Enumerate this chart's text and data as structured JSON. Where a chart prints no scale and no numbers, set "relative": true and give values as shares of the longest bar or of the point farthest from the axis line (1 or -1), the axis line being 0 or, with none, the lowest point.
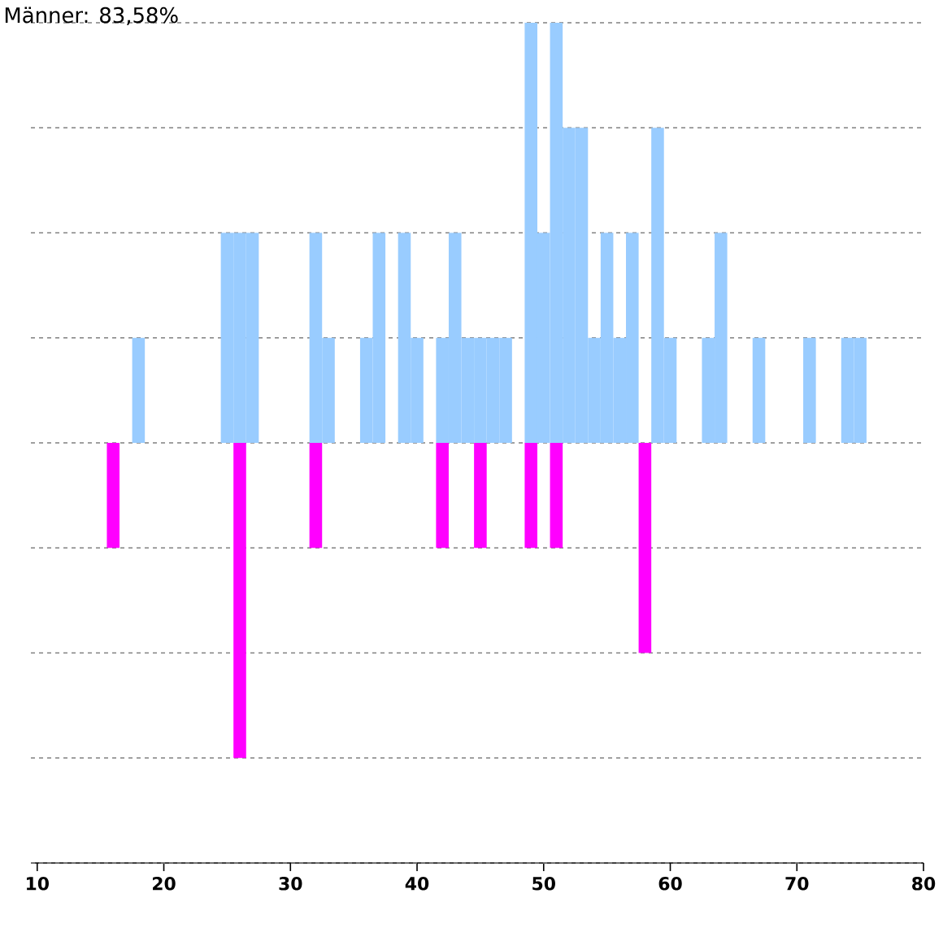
{
  "chart_data": {
    "type": "bar",
    "relative": true,
    "grid": "y",
    "tick_labels": "x",
    "annotations": [
      "Männer: 83,58%"
    ],
    "x": [
      16,
      18,
      25,
      26,
      27,
      32,
      33,
      36,
      37,
      39,
      40,
      42,
      43,
      44,
      45,
      46,
      47,
      49,
      50,
      51,
      52,
      53,
      54,
      55,
      56,
      57,
      58,
      59,
      60,
      63,
      64,
      67,
      71,
      74,
      75
    ],
    "xlim": [
      9.5,
      80
    ],
    "xticks": [
      10,
      20,
      30,
      40,
      50,
      60,
      70,
      80
    ],
    "series": [
      {
        "color": "#99ccff",
        "values": [
          null,
          0.25,
          0.5,
          0.5,
          0.5,
          0.5,
          0.25,
          0.25,
          0.5,
          0.5,
          0.25,
          0.25,
          0.5,
          0.25,
          0.25,
          0.25,
          0.25,
          1,
          0.5,
          1,
          0.75,
          0.75,
          0.25,
          0.5,
          0.25,
          0.5,
          null,
          0.75,
          0.25,
          0.25,
          0.5,
          0.25,
          0.25,
          0.25,
          0.25
        ]
      },
      {
        "color": "#ff00ff",
        "values": [
          -0.25,
          null,
          null,
          -0.75,
          null,
          -0.25,
          null,
          null,
          null,
          null,
          null,
          -0.25,
          null,
          null,
          -0.25,
          null,
          null,
          -0.25,
          null,
          -0.25,
          null,
          null,
          null,
          null,
          null,
          null,
          -0.5,
          null,
          null,
          null,
          null,
          null,
          null,
          null,
          null
        ]
      }
    ]
  }
}
